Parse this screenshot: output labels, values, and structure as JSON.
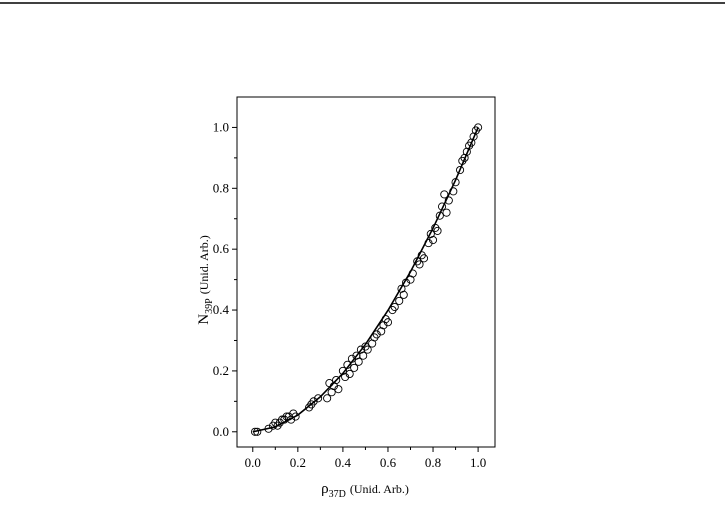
{
  "chart_data": {
    "type": "scatter",
    "x_label": {
      "symbol": "ρ",
      "subscript": "37D",
      "unit": "(Unid. Arb.)"
    },
    "y_label": {
      "symbol": "N",
      "subscript": "39P",
      "unit": "(Unid. Arb.)"
    },
    "xlim": [
      -0.07,
      1.075
    ],
    "ylim": [
      -0.05,
      1.1
    ],
    "xticks": [
      {
        "value": 0,
        "label": "0.0"
      },
      {
        "value": 0.2,
        "label": "0.2"
      },
      {
        "value": 0.4,
        "label": "0.4"
      },
      {
        "value": 0.6,
        "label": "0.6"
      },
      {
        "value": 0.8,
        "label": "0.8"
      },
      {
        "value": 1,
        "label": "1.0"
      }
    ],
    "yticks": [
      {
        "value": 0,
        "label": "0.0"
      },
      {
        "value": 0.2,
        "label": "0.2"
      },
      {
        "value": 0.4,
        "label": "0.4"
      },
      {
        "value": 0.6,
        "label": "0.6"
      },
      {
        "value": 0.8,
        "label": "0.8"
      },
      {
        "value": 1,
        "label": "1.0"
      }
    ],
    "xminorticks": [
      0.1,
      0.3,
      0.5,
      0.7,
      0.9
    ],
    "yminorticks": [
      0.1,
      0.3,
      0.5,
      0.7,
      0.9
    ],
    "series": [
      {
        "type": "scatter",
        "color": "#000000",
        "x": [
          0.01,
          0.02,
          0.07,
          0.09,
          0.1,
          0.11,
          0.12,
          0.13,
          0.14,
          0.15,
          0.16,
          0.17,
          0.18,
          0.19,
          0.25,
          0.26,
          0.27,
          0.29,
          0.33,
          0.34,
          0.35,
          0.36,
          0.37,
          0.38,
          0.4,
          0.41,
          0.42,
          0.43,
          0.44,
          0.45,
          0.46,
          0.47,
          0.48,
          0.49,
          0.5,
          0.51,
          0.53,
          0.54,
          0.55,
          0.57,
          0.58,
          0.59,
          0.6,
          0.62,
          0.63,
          0.65,
          0.66,
          0.67,
          0.68,
          0.7,
          0.71,
          0.73,
          0.74,
          0.75,
          0.76,
          0.78,
          0.79,
          0.8,
          0.81,
          0.82,
          0.83,
          0.84,
          0.85,
          0.86,
          0.87,
          0.89,
          0.9,
          0.92,
          0.93,
          0.94,
          0.95,
          0.96,
          0.97,
          0.98,
          0.99,
          1.0
        ],
        "values": [
          0.0,
          0.0,
          0.01,
          0.02,
          0.03,
          0.02,
          0.03,
          0.04,
          0.04,
          0.05,
          0.05,
          0.04,
          0.06,
          0.05,
          0.08,
          0.09,
          0.1,
          0.11,
          0.11,
          0.16,
          0.13,
          0.15,
          0.17,
          0.14,
          0.2,
          0.18,
          0.22,
          0.19,
          0.24,
          0.21,
          0.25,
          0.23,
          0.27,
          0.25,
          0.28,
          0.27,
          0.29,
          0.31,
          0.32,
          0.33,
          0.35,
          0.37,
          0.36,
          0.4,
          0.41,
          0.43,
          0.47,
          0.45,
          0.49,
          0.5,
          0.52,
          0.56,
          0.55,
          0.58,
          0.57,
          0.62,
          0.65,
          0.63,
          0.67,
          0.66,
          0.71,
          0.74,
          0.78,
          0.72,
          0.76,
          0.79,
          0.82,
          0.86,
          0.89,
          0.9,
          0.92,
          0.94,
          0.95,
          0.97,
          0.99,
          1.0
        ]
      },
      {
        "type": "line",
        "color": "#000000",
        "x": [
          0,
          0.1,
          0.2,
          0.3,
          0.4,
          0.5,
          0.6,
          0.7,
          0.8,
          0.9,
          1.0
        ],
        "values": [
          0,
          0.016,
          0.055,
          0.115,
          0.192,
          0.287,
          0.399,
          0.526,
          0.669,
          0.827,
          1.0
        ]
      }
    ]
  }
}
